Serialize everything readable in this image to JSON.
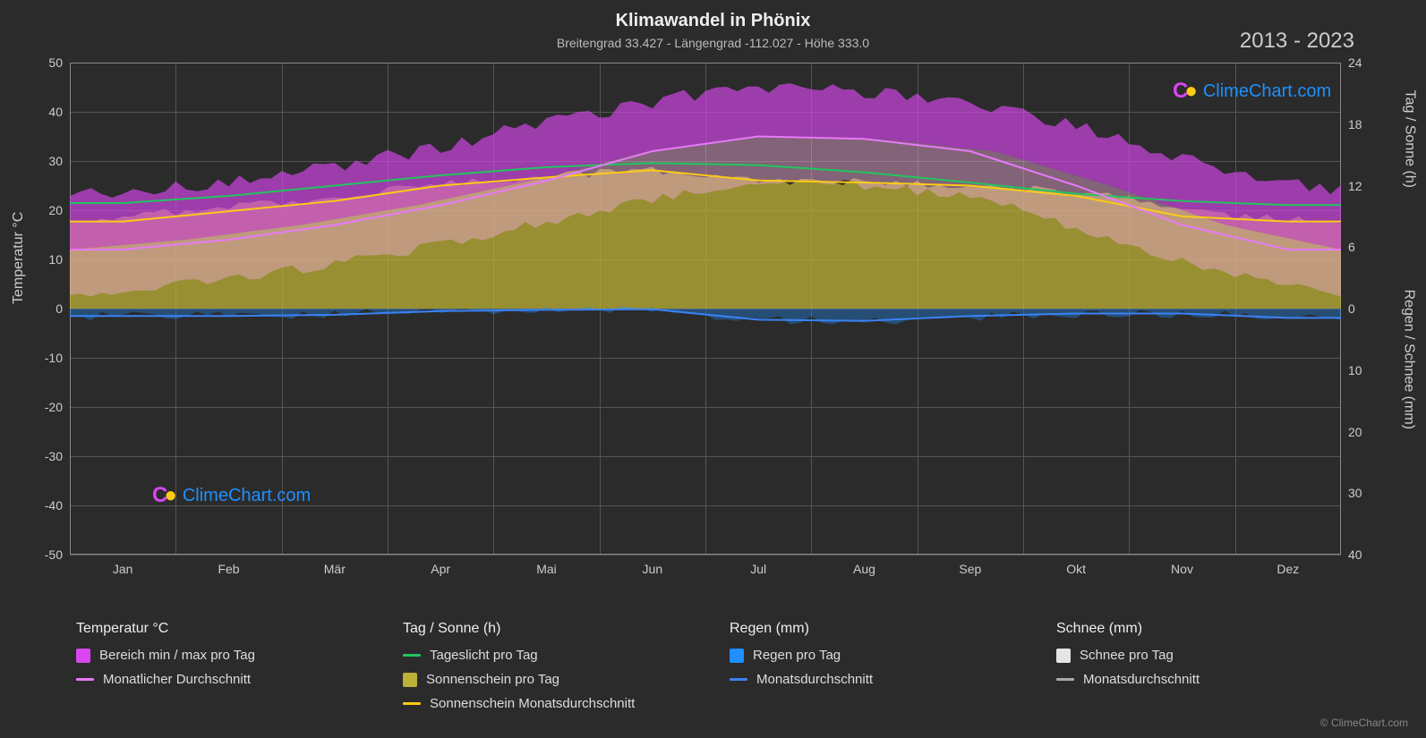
{
  "title": "Klimawandel in Phönix",
  "subtitle": "Breitengrad 33.427 - Längengrad -112.027 - Höhe 333.0",
  "year_range": "2013 - 2023",
  "axis_labels": {
    "left": "Temperatur °C",
    "right_top": "Tag / Sonne (h)",
    "right_bottom": "Regen / Schnee (mm)"
  },
  "left_axis": {
    "min": -50,
    "max": 50,
    "ticks": [
      -50,
      -40,
      -30,
      -20,
      -10,
      0,
      10,
      20,
      30,
      40,
      50
    ]
  },
  "right_axis_top": {
    "min": 0,
    "max": 24,
    "ticks": [
      0,
      6,
      12,
      18,
      24
    ]
  },
  "right_axis_bottom": {
    "min": 0,
    "max": 40,
    "ticks": [
      0,
      10,
      20,
      30,
      40
    ]
  },
  "months": [
    "Jan",
    "Feb",
    "Mär",
    "Apr",
    "Mai",
    "Jun",
    "Jul",
    "Aug",
    "Sep",
    "Okt",
    "Nov",
    "Dez"
  ],
  "colors": {
    "background": "#2b2b2b",
    "grid": "#555555",
    "temp_range": "#d946ef",
    "temp_range_light": "#f0a8d8",
    "temp_avg_line": "#e879f9",
    "daylight_line": "#22c55e",
    "sunshine_fill": "#bdb137",
    "sunshine_line": "#facc15",
    "rain_fill": "#1e90ff",
    "rain_line": "#3b82f6",
    "snow_fill": "#e5e5e5",
    "snow_line": "#aaaaaa",
    "watermark_text": "#1e90ff"
  },
  "data": {
    "temp_avg": [
      12,
      14,
      17,
      21,
      26,
      32,
      35,
      34.5,
      32,
      25,
      17,
      12
    ],
    "temp_min_spread": [
      3,
      5,
      8,
      12,
      17,
      22,
      26,
      25,
      22,
      14,
      7,
      3
    ],
    "temp_max_spread": [
      23,
      25,
      28,
      32,
      37,
      42,
      45,
      44,
      41,
      35,
      28,
      24
    ],
    "daylight": [
      10.3,
      11,
      12,
      13,
      13.8,
      14.2,
      14,
      13.3,
      12.3,
      11.2,
      10.5,
      10.1
    ],
    "sunshine": [
      8.5,
      9.5,
      10.5,
      12,
      12.8,
      13.5,
      12.5,
      12.3,
      12,
      11,
      9,
      8.5
    ],
    "rain_avg": [
      1.2,
      1.2,
      1.0,
      0.4,
      0.2,
      0.1,
      1.8,
      2.0,
      1.2,
      0.8,
      0.8,
      1.5
    ]
  },
  "legend": {
    "col1": {
      "title": "Temperatur °C",
      "items": [
        {
          "type": "swatch",
          "color": "#d946ef",
          "label": "Bereich min / max pro Tag"
        },
        {
          "type": "line",
          "color": "#e879f9",
          "label": "Monatlicher Durchschnitt"
        }
      ]
    },
    "col2": {
      "title": "Tag / Sonne (h)",
      "items": [
        {
          "type": "line",
          "color": "#22c55e",
          "label": "Tageslicht pro Tag"
        },
        {
          "type": "swatch",
          "color": "#bdb137",
          "label": "Sonnenschein pro Tag"
        },
        {
          "type": "line",
          "color": "#facc15",
          "label": "Sonnenschein Monatsdurchschnitt"
        }
      ]
    },
    "col3": {
      "title": "Regen (mm)",
      "items": [
        {
          "type": "swatch",
          "color": "#1e90ff",
          "label": "Regen pro Tag"
        },
        {
          "type": "line",
          "color": "#3b82f6",
          "label": "Monatsdurchschnitt"
        }
      ]
    },
    "col4": {
      "title": "Schnee (mm)",
      "items": [
        {
          "type": "swatch",
          "color": "#e5e5e5",
          "label": "Schnee pro Tag"
        },
        {
          "type": "line",
          "color": "#aaaaaa",
          "label": "Monatsdurchschnitt"
        }
      ]
    }
  },
  "watermark": "ClimeChart.com",
  "copyright": "© ClimeChart.com"
}
